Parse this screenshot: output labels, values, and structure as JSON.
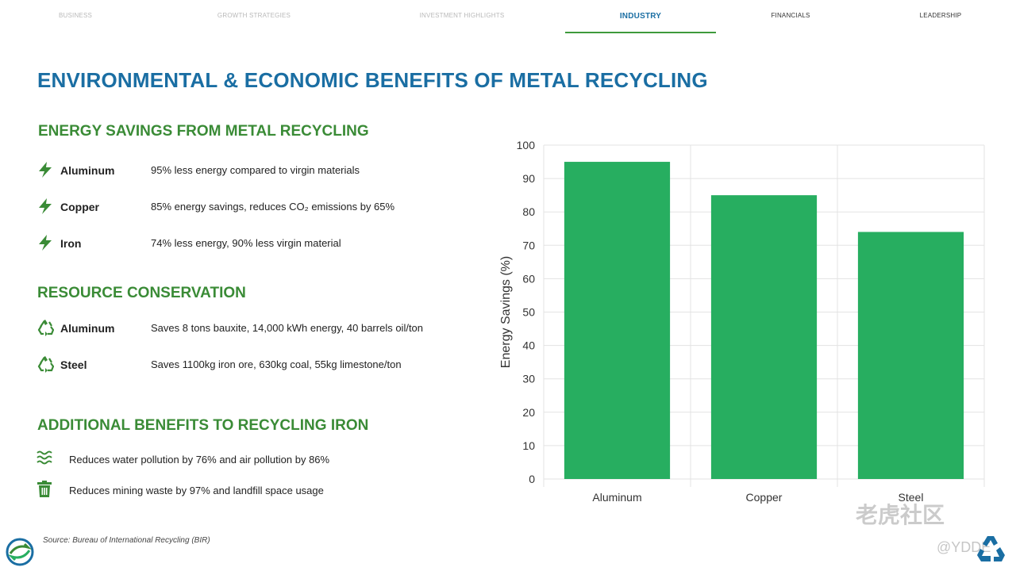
{
  "nav": {
    "items": [
      {
        "label": "BUSINESS"
      },
      {
        "label": "GROWTH STRATEGIES"
      },
      {
        "label": "INVESTMENT HIGHLIGHTS"
      },
      {
        "label": "INDUSTRY"
      },
      {
        "label": "FINANCIALS"
      },
      {
        "label": "LEADERSHIP"
      }
    ]
  },
  "page": {
    "title": "ENVIRONMENTAL & ECONOMIC BENEFITS OF METAL RECYCLING"
  },
  "energy": {
    "title": "ENERGY SAVINGS FROM METAL RECYCLING",
    "items": [
      {
        "name": "Aluminum",
        "desc": "95% less energy compared to virgin materials",
        "icon": "bolt-icon"
      },
      {
        "name": "Copper",
        "desc": "85% energy savings, reduces CO₂ emissions by 65%",
        "icon": "bolt-icon"
      },
      {
        "name": "Iron",
        "desc": "74% less energy, 90% less virgin material",
        "icon": "bolt-icon"
      }
    ]
  },
  "resource": {
    "title": "RESOURCE CONSERVATION",
    "items": [
      {
        "name": "Aluminum",
        "desc": "Saves 8 tons bauxite, 14,000 kWh energy, 40 barrels oil/ton",
        "icon": "recycle-icon"
      },
      {
        "name": "Steel",
        "desc": "Saves 1100kg iron ore, 630kg coal, 55kg limestone/ton",
        "icon": "recycle-icon"
      }
    ]
  },
  "additional": {
    "title": "ADDITIONAL BENEFITS TO RECYCLING IRON",
    "items": [
      {
        "desc": "Reduces water pollution by 76% and air pollution by 86%",
        "icon": "water-icon"
      },
      {
        "desc": "Reduces mining waste by 97% and landfill space usage",
        "icon": "trash-icon"
      }
    ]
  },
  "source": "Source: Bureau of International Recycling (BIR)",
  "watermark": {
    "main": "老虎社区",
    "handle": "@YDDE"
  },
  "colors": {
    "accent_blue": "#1a6ea3",
    "accent_green": "#3a8b36",
    "bar_green": "#27ae60"
  },
  "chart_data": {
    "type": "bar",
    "categories": [
      "Aluminum",
      "Copper",
      "Steel"
    ],
    "values": [
      95,
      85,
      74
    ],
    "title": "",
    "xlabel": "",
    "ylabel": "Energy Savings (%)",
    "ylim": [
      0,
      100
    ],
    "yticks": [
      0,
      10,
      20,
      30,
      40,
      50,
      60,
      70,
      80,
      90,
      100
    ],
    "grid": true,
    "legend": "none",
    "bar_color": "#27ae60"
  }
}
